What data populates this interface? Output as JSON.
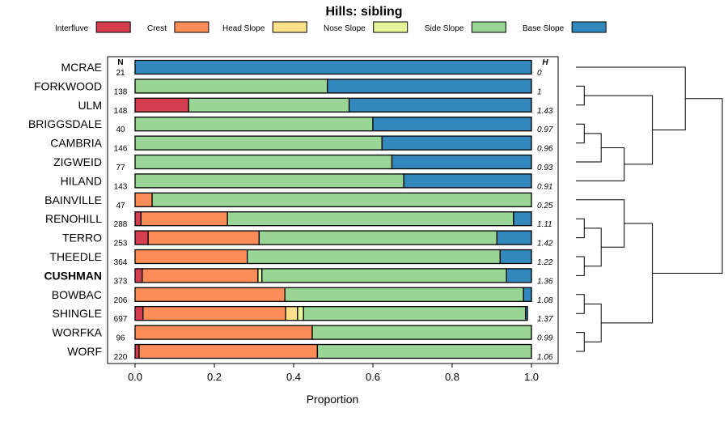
{
  "chart_data": {
    "type": "bar",
    "stacked": true,
    "orientation": "horizontal",
    "title": "Hills: sibling",
    "xlabel": "Proportion",
    "ylabel": "",
    "xlim": [
      0,
      1
    ],
    "xticks": [
      "0.0",
      "0.2",
      "0.4",
      "0.6",
      "0.8",
      "1.0"
    ],
    "n_header": "N",
    "h_header": "H",
    "highlight": "CUSHMAN",
    "legend": [
      {
        "name": "Interfluve",
        "color": "#d53e4f"
      },
      {
        "name": "Crest",
        "color": "#fc8d59"
      },
      {
        "name": "Head Slope",
        "color": "#fee08b"
      },
      {
        "name": "Nose Slope",
        "color": "#e6f598"
      },
      {
        "name": "Side Slope",
        "color": "#99d594"
      },
      {
        "name": "Base Slope",
        "color": "#3288bd"
      }
    ],
    "categories": [
      "MCRAE",
      "FORKWOOD",
      "ULM",
      "BRIGGSDALE",
      "CAMBRIA",
      "ZIGWEID",
      "HILAND",
      "BAINVILLE",
      "RENOHILL",
      "TERRO",
      "THEEDLE",
      "CUSHMAN",
      "BOWBAC",
      "SHINGLE",
      "WORFKA",
      "WORF"
    ],
    "n": [
      "21",
      "138",
      "148",
      "40",
      "146",
      "77",
      "143",
      "47",
      "288",
      "253",
      "364",
      "373",
      "206",
      "697",
      "96",
      "220"
    ],
    "h": [
      "0",
      "1",
      "1.43",
      "0.97",
      "0.96",
      "0.93",
      "0.91",
      "0.25",
      "1.11",
      "1.42",
      "1.22",
      "1.36",
      "1.08",
      "1.37",
      "0.99",
      "1.06"
    ],
    "series": [
      {
        "name": "Interfluve",
        "values": [
          0,
          0,
          0.135,
          0,
          0,
          0,
          0,
          0,
          0.015,
          0.033,
          0,
          0.018,
          0,
          0.02,
          0,
          0.01
        ]
      },
      {
        "name": "Crest",
        "values": [
          0,
          0,
          0,
          0,
          0,
          0,
          0,
          0.043,
          0.218,
          0.28,
          0.283,
          0.292,
          0.378,
          0.36,
          0.447,
          0.45
        ]
      },
      {
        "name": "Head Slope",
        "values": [
          0,
          0,
          0,
          0,
          0,
          0,
          0,
          0,
          0,
          0,
          0,
          0,
          0,
          0.03,
          0,
          0
        ]
      },
      {
        "name": "Nose Slope",
        "values": [
          0,
          0,
          0,
          0,
          0,
          0,
          0,
          0,
          0,
          0,
          0,
          0.01,
          0,
          0.015,
          0,
          0
        ]
      },
      {
        "name": "Side Slope",
        "values": [
          0,
          0.485,
          0.405,
          0.6,
          0.623,
          0.648,
          0.678,
          0.957,
          0.722,
          0.6,
          0.638,
          0.617,
          0.602,
          0.56,
          0.553,
          0.54
        ]
      },
      {
        "name": "Base Slope",
        "values": [
          1,
          0.515,
          0.46,
          0.4,
          0.377,
          0.352,
          0.322,
          0,
          0.045,
          0.087,
          0.079,
          0.063,
          0.02,
          0.005,
          0,
          0
        ]
      }
    ]
  }
}
